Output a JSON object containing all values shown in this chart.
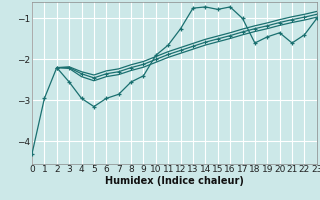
{
  "title": "",
  "xlabel": "Humidex (Indice chaleur)",
  "bg_color": "#cce8e8",
  "grid_color": "#ffffff",
  "line_color": "#1a7070",
  "xlim": [
    0,
    23
  ],
  "ylim": [
    -4.55,
    -0.6
  ],
  "yticks": [
    -4,
    -3,
    -2,
    -1
  ],
  "xticks": [
    0,
    1,
    2,
    3,
    4,
    5,
    6,
    7,
    8,
    9,
    10,
    11,
    12,
    13,
    14,
    15,
    16,
    17,
    18,
    19,
    20,
    21,
    22,
    23
  ],
  "curve1_x": [
    0,
    1,
    2,
    3,
    4,
    5,
    6,
    7,
    8,
    9,
    10,
    11,
    12,
    13,
    14,
    15,
    16,
    17,
    18,
    19,
    20,
    21,
    22,
    23
  ],
  "curve1_y": [
    -4.3,
    -2.95,
    -2.2,
    -2.55,
    -2.95,
    -3.15,
    -2.95,
    -2.85,
    -2.55,
    -2.4,
    -1.9,
    -1.65,
    -1.25,
    -0.75,
    -0.72,
    -0.78,
    -0.72,
    -1.0,
    -1.6,
    -1.45,
    -1.35,
    -1.6,
    -1.4,
    -1.0
  ],
  "curve2_x": [
    2,
    3,
    4,
    5,
    6,
    7,
    8,
    9,
    10,
    11,
    12,
    13,
    14,
    15,
    16,
    17,
    18,
    19,
    20,
    21,
    22,
    23
  ],
  "curve2_y": [
    -2.2,
    -2.2,
    -2.35,
    -2.45,
    -2.35,
    -2.3,
    -2.2,
    -2.12,
    -2.0,
    -1.88,
    -1.78,
    -1.68,
    -1.58,
    -1.5,
    -1.42,
    -1.33,
    -1.25,
    -1.18,
    -1.1,
    -1.03,
    -0.97,
    -0.9
  ],
  "curve3_x": [
    2,
    3,
    4,
    5,
    6,
    7,
    8,
    9,
    10,
    11,
    12,
    13,
    14,
    15,
    16,
    17,
    18,
    19,
    20,
    21,
    22,
    23
  ],
  "curve3_y": [
    -2.2,
    -2.22,
    -2.42,
    -2.52,
    -2.42,
    -2.37,
    -2.27,
    -2.19,
    -2.07,
    -1.95,
    -1.85,
    -1.75,
    -1.65,
    -1.57,
    -1.49,
    -1.4,
    -1.32,
    -1.25,
    -1.17,
    -1.1,
    -1.04,
    -0.97
  ],
  "curve4_x": [
    2,
    3,
    4,
    5,
    6,
    7,
    8,
    9,
    10,
    11,
    12,
    13,
    14,
    15,
    16,
    17,
    18,
    19,
    20,
    21,
    22,
    23
  ],
  "curve4_y": [
    -2.2,
    -2.18,
    -2.3,
    -2.38,
    -2.28,
    -2.23,
    -2.13,
    -2.05,
    -1.93,
    -1.81,
    -1.71,
    -1.61,
    -1.51,
    -1.43,
    -1.35,
    -1.26,
    -1.18,
    -1.11,
    -1.03,
    -0.96,
    -0.9,
    -0.83
  ]
}
